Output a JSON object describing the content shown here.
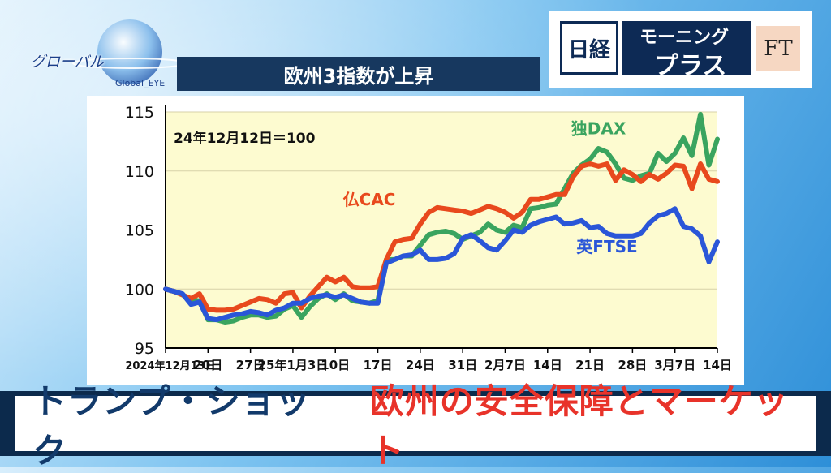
{
  "header": {
    "logo_text": "グローバル",
    "logo_sub": "Global_EYE",
    "chart_title": "欧州3指数が上昇",
    "brand_nikkei": "日経",
    "brand_morning": "モーニング",
    "brand_plus": "プラス",
    "brand_ft": "FT"
  },
  "footer": {
    "left": "トランプ・ショック",
    "right": "欧州の安全保障とマーケット"
  },
  "colors": {
    "cac": "#e8491d",
    "dax": "#3aa45f",
    "ftse": "#2a56d8",
    "plot_bg": "#fdfbd0"
  },
  "chart_data": {
    "type": "line",
    "annotation": "24年12月12日＝100",
    "ylim": [
      95,
      115
    ],
    "yticks": [
      95,
      100,
      105,
      110,
      115
    ],
    "x_tick_labels": [
      "2024年12月13日",
      "20日",
      "27日",
      "25年1月3日",
      "10日",
      "17日",
      "24日",
      "31日",
      "2月7日",
      "14日",
      "21日",
      "28日",
      "3月7日",
      "14日"
    ],
    "x_count": 66,
    "series": [
      {
        "name": "仏CAC",
        "color": "#e8491d",
        "values": [
          100,
          99.8,
          99.5,
          99.2,
          99.6,
          98.3,
          98.2,
          98.2,
          98.3,
          98.6,
          98.9,
          99.2,
          99.1,
          98.8,
          99.6,
          99.7,
          98.4,
          99.4,
          100.2,
          101.0,
          100.6,
          101.0,
          100.2,
          100.1,
          100.1,
          100.2,
          102.5,
          104.0,
          104.2,
          104.3,
          105.5,
          106.5,
          106.9,
          106.8,
          106.7,
          106.6,
          106.4,
          106.7,
          107.0,
          106.8,
          106.5,
          106.0,
          106.5,
          107.6,
          107.6,
          107.8,
          108.0,
          108.0,
          109.5,
          110.4,
          110.6,
          110.4,
          110.6,
          109.2,
          110.1,
          109.7,
          109.1,
          109.7,
          109.3,
          109.8,
          110.5,
          110.4,
          108.5,
          110.6,
          109.3,
          109.1
        ]
      },
      {
        "name": "独DAX",
        "color": "#3aa45f",
        "values": [
          100,
          99.8,
          99.5,
          99.1,
          99.0,
          97.4,
          97.4,
          97.2,
          97.3,
          97.6,
          97.8,
          97.8,
          97.6,
          97.7,
          98.3,
          98.6,
          97.6,
          98.5,
          99.2,
          99.6,
          99.1,
          99.6,
          99.0,
          98.9,
          98.8,
          99.0,
          102.5,
          102.5,
          102.8,
          102.8,
          103.7,
          104.6,
          104.8,
          104.9,
          104.7,
          104.2,
          104.5,
          104.8,
          105.5,
          105.0,
          104.8,
          105.4,
          105.2,
          106.8,
          106.9,
          107.1,
          107.2,
          108.5,
          109.8,
          110.5,
          111.0,
          111.9,
          111.6,
          110.6,
          109.4,
          109.2,
          109.6,
          109.8,
          111.5,
          110.8,
          111.5,
          112.8,
          111.3,
          114.8,
          110.5,
          112.7
        ]
      },
      {
        "name": "英FTSE",
        "color": "#2a56d8",
        "values": [
          100,
          99.8,
          99.6,
          98.7,
          98.9,
          97.5,
          97.4,
          97.6,
          97.8,
          97.9,
          98.1,
          98.0,
          97.8,
          98.2,
          98.4,
          98.8,
          98.8,
          99.2,
          99.4,
          99.5,
          99.3,
          99.5,
          99.2,
          98.9,
          98.8,
          98.8,
          102.2,
          102.5,
          102.8,
          102.9,
          103.3,
          102.5,
          102.5,
          102.6,
          103.0,
          104.3,
          104.6,
          104.1,
          103.5,
          103.3,
          104.1,
          105.0,
          104.8,
          105.4,
          105.7,
          105.9,
          106.1,
          105.5,
          105.6,
          105.8,
          105.2,
          105.3,
          104.7,
          104.5,
          104.5,
          104.5,
          104.7,
          105.6,
          106.2,
          106.4,
          106.8,
          105.3,
          105.1,
          104.5,
          102.3,
          104.0
        ]
      }
    ],
    "series_labels": [
      {
        "text": "仏CAC",
        "series": 0
      },
      {
        "text": "独DAX",
        "series": 1
      },
      {
        "text": "英FTSE",
        "series": 2
      }
    ]
  }
}
